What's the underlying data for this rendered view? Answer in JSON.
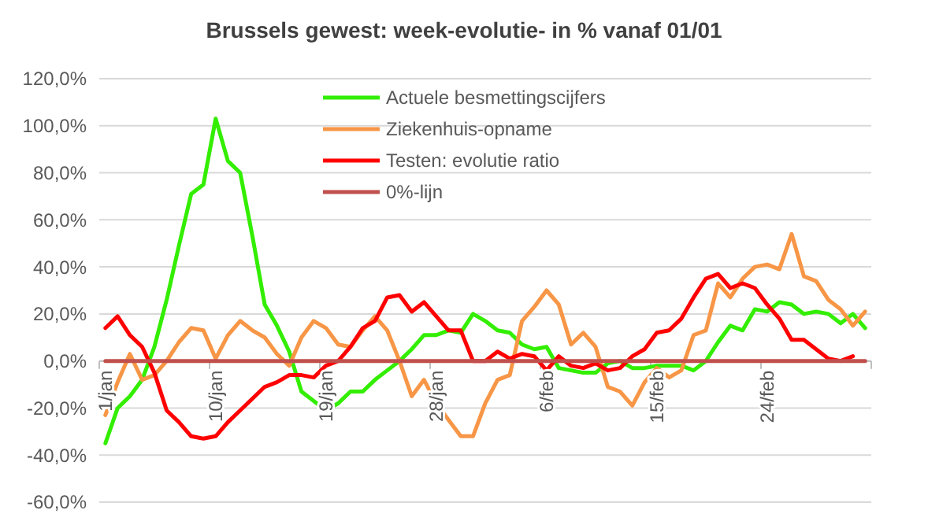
{
  "chart_data": {
    "type": "line",
    "title": "Brussels gewest: week-evolutie- in %  vanaf 01/01",
    "categories": [
      "1/jan",
      null,
      null,
      null,
      null,
      null,
      null,
      null,
      null,
      "10/jan",
      null,
      null,
      null,
      null,
      null,
      null,
      null,
      null,
      "19/jan",
      null,
      null,
      null,
      null,
      null,
      null,
      null,
      null,
      "28/jan",
      null,
      null,
      null,
      null,
      null,
      null,
      null,
      null,
      "6/feb",
      null,
      null,
      null,
      null,
      null,
      null,
      null,
      null,
      "15/feb",
      null,
      null,
      null,
      null,
      null,
      null,
      null,
      null,
      "24/feb",
      null,
      null,
      null,
      null,
      null,
      null,
      null,
      null
    ],
    "series": [
      {
        "name": "Actuele besmettingscijfers",
        "color": "#33ee00",
        "values": [
          -35,
          -20,
          -15,
          -8,
          6,
          26,
          49,
          71,
          75,
          103,
          85,
          80,
          53,
          24,
          15,
          4,
          -13,
          -17,
          -21,
          -18,
          -13,
          -13,
          -8,
          -4,
          0,
          5,
          11,
          11,
          13,
          12,
          20,
          17,
          13,
          12,
          7,
          5,
          6,
          -3,
          -4,
          -5,
          -5,
          -1,
          0,
          -3,
          -3,
          -2,
          -2,
          -2,
          -4,
          0,
          8,
          15,
          13,
          22,
          21,
          25,
          24,
          20,
          21,
          20,
          16,
          20,
          14
        ]
      },
      {
        "name": "Ziekenhuis-opname",
        "color": "#f79646",
        "values": [
          -23,
          -9,
          3,
          -8,
          -6,
          0,
          8,
          14,
          13,
          1,
          11,
          17,
          13,
          10,
          3,
          -2,
          10,
          17,
          14,
          7,
          6,
          13,
          19,
          13,
          0,
          -15,
          -8,
          -18,
          -25,
          -32,
          -32,
          -18,
          -8,
          -6,
          17,
          23,
          30,
          24,
          7,
          12,
          6,
          -11,
          -13,
          -19,
          -9,
          -3,
          -7,
          -4,
          11,
          13,
          33,
          27,
          35,
          40,
          41,
          39,
          54,
          36,
          34,
          26,
          22,
          15,
          21
        ]
      },
      {
        "name": "Testen: evolutie ratio",
        "color": "#ff0000",
        "values": [
          14,
          19,
          11,
          6,
          -5,
          -21,
          -26,
          -32,
          -33,
          -32,
          -26,
          -21,
          -16,
          -11,
          -9,
          -6,
          -6,
          -7,
          -2,
          0,
          6,
          14,
          17,
          27,
          28,
          21,
          25,
          19,
          13,
          13,
          0,
          0,
          4,
          1,
          3,
          2,
          -4,
          2,
          -2,
          -3,
          -1,
          -4,
          -3,
          2,
          5,
          12,
          13,
          18,
          27,
          35,
          37,
          31,
          33,
          31,
          24,
          18,
          9,
          9,
          5,
          1,
          0,
          2,
          null
        ]
      },
      {
        "name": "0%-lijn",
        "color": "#c0504d",
        "values": [
          0,
          0,
          0,
          0,
          0,
          0,
          0,
          0,
          0,
          0,
          0,
          0,
          0,
          0,
          0,
          0,
          0,
          0,
          0,
          0,
          0,
          0,
          0,
          0,
          0,
          0,
          0,
          0,
          0,
          0,
          0,
          0,
          0,
          0,
          0,
          0,
          0,
          0,
          0,
          0,
          0,
          0,
          0,
          0,
          0,
          0,
          0,
          0,
          0,
          0,
          0,
          0,
          0,
          0,
          0,
          0,
          0,
          0,
          0,
          0,
          0,
          0,
          0
        ]
      }
    ],
    "ylim": [
      -60,
      120
    ],
    "yticks": [
      {
        "value": -60,
        "label": "-60,0%"
      },
      {
        "value": -40,
        "label": "-40,0%"
      },
      {
        "value": -20,
        "label": "-20,0%"
      },
      {
        "value": 0,
        "label": "0,0%"
      },
      {
        "value": 20,
        "label": "20,0%"
      },
      {
        "value": 40,
        "label": "40,0%"
      },
      {
        "value": 60,
        "label": "60,0%"
      },
      {
        "value": 80,
        "label": "80,0%"
      },
      {
        "value": 100,
        "label": "100,0%"
      },
      {
        "value": 120,
        "label": "120,0%"
      }
    ],
    "grid": "y",
    "legend": "top right"
  }
}
